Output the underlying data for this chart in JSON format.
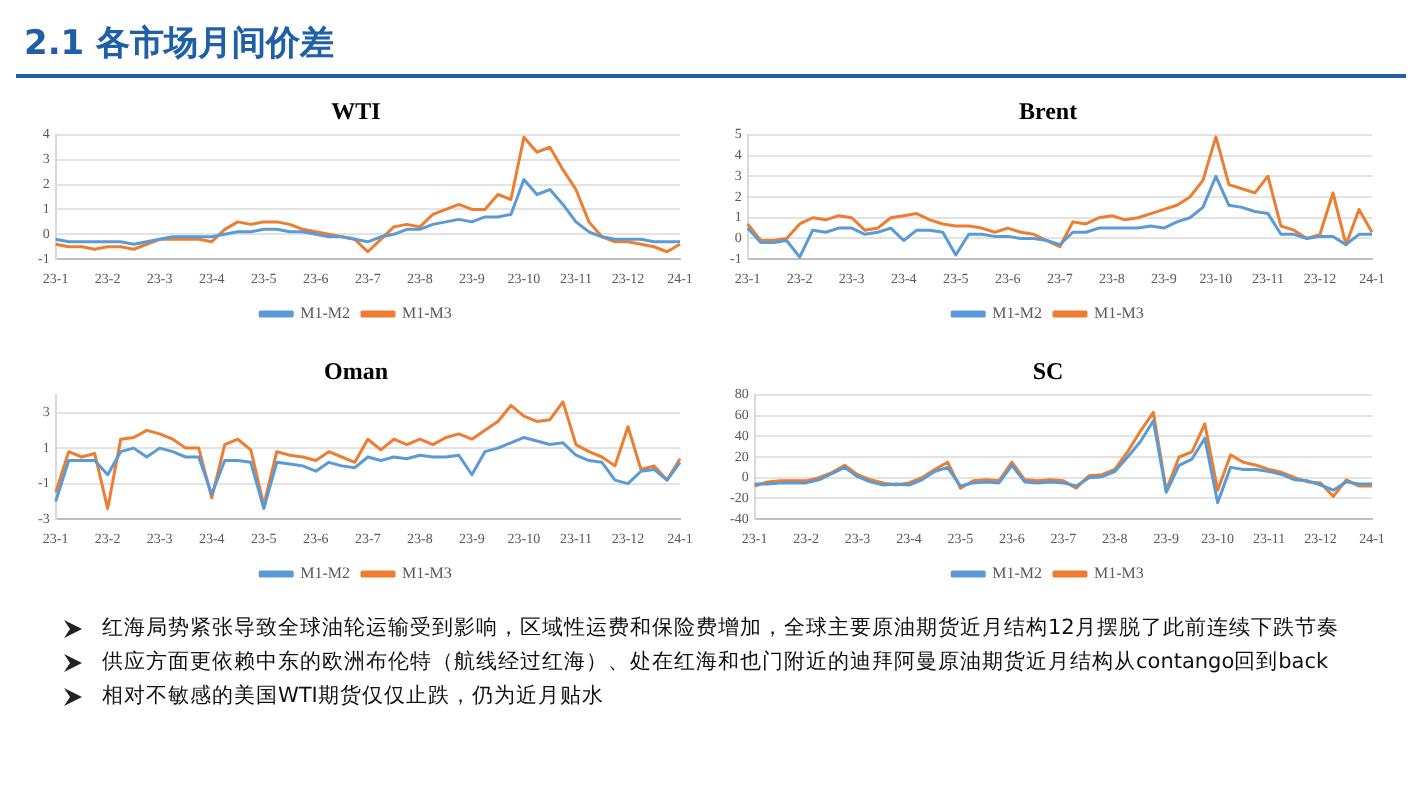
{
  "chart_data": [
    {
      "type": "other",
      "title": "2.1 各市场月间价差"
    },
    {
      "type": "line",
      "title": "WTI",
      "categories": [
        "23-1",
        null,
        null,
        null,
        "23-2",
        null,
        null,
        null,
        "23-3",
        null,
        null,
        null,
        "23-4",
        null,
        null,
        null,
        "23-5",
        null,
        null,
        null,
        "23-6",
        null,
        null,
        null,
        "23-7",
        null,
        null,
        null,
        "23-8",
        null,
        null,
        null,
        "23-9",
        null,
        null,
        null,
        "23-10",
        null,
        null,
        null,
        "23-11",
        null,
        null,
        null,
        "23-12",
        null,
        null,
        null,
        "24-1"
      ],
      "ylim": [
        -1,
        4
      ],
      "yticks": [
        -1,
        0,
        1,
        2,
        3,
        4
      ],
      "grid": "y",
      "legend": "bottom",
      "marker": "none",
      "line_style": "solid",
      "series": [
        {
          "name": "M1-M2",
          "color": "#5b9bd5",
          "values": [
            -0.2,
            -0.3,
            -0.3,
            -0.3,
            -0.3,
            -0.3,
            -0.4,
            -0.3,
            -0.2,
            -0.1,
            -0.1,
            -0.1,
            -0.1,
            0.0,
            0.1,
            0.1,
            0.2,
            0.2,
            0.1,
            0.1,
            0.0,
            -0.1,
            -0.1,
            -0.2,
            -0.3,
            -0.1,
            0.0,
            0.2,
            0.2,
            0.4,
            0.5,
            0.6,
            0.5,
            0.7,
            0.7,
            0.8,
            2.2,
            1.6,
            1.8,
            1.2,
            0.5,
            0.1,
            -0.1,
            -0.2,
            -0.2,
            -0.2,
            -0.3,
            -0.3,
            -0.3
          ]
        },
        {
          "name": "M1-M3",
          "color": "#ed7d31",
          "values": [
            -0.4,
            -0.5,
            -0.5,
            -0.6,
            -0.5,
            -0.5,
            -0.6,
            -0.4,
            -0.2,
            -0.2,
            -0.2,
            -0.2,
            -0.3,
            0.2,
            0.5,
            0.4,
            0.5,
            0.5,
            0.4,
            0.2,
            0.1,
            0.0,
            -0.1,
            -0.2,
            -0.7,
            -0.2,
            0.3,
            0.4,
            0.3,
            0.8,
            1.0,
            1.2,
            1.0,
            1.0,
            1.6,
            1.4,
            3.9,
            3.3,
            3.5,
            2.6,
            1.8,
            0.5,
            -0.1,
            -0.3,
            -0.3,
            -0.4,
            -0.5,
            -0.7,
            -0.4
          ]
        }
      ]
    },
    {
      "type": "line",
      "title": "Brent",
      "categories": [
        "23-1",
        null,
        null,
        null,
        "23-2",
        null,
        null,
        null,
        "23-3",
        null,
        null,
        null,
        "23-4",
        null,
        null,
        null,
        "23-5",
        null,
        null,
        null,
        "23-6",
        null,
        null,
        null,
        "23-7",
        null,
        null,
        null,
        "23-8",
        null,
        null,
        null,
        "23-9",
        null,
        null,
        null,
        "23-10",
        null,
        null,
        null,
        "23-11",
        null,
        null,
        null,
        "23-12",
        null,
        null,
        null,
        "24-1"
      ],
      "ylim": [
        -1,
        5
      ],
      "yticks": [
        -1,
        0,
        1,
        2,
        3,
        4,
        5
      ],
      "grid": "y",
      "legend": "bottom",
      "marker": "none",
      "line_style": "solid",
      "series": [
        {
          "name": "M1-M2",
          "color": "#5b9bd5",
          "values": [
            0.5,
            -0.2,
            -0.2,
            -0.1,
            -0.9,
            0.4,
            0.3,
            0.5,
            0.5,
            0.2,
            0.3,
            0.5,
            -0.1,
            0.4,
            0.4,
            0.3,
            -0.8,
            0.2,
            0.2,
            0.1,
            0.1,
            0.0,
            0.0,
            -0.1,
            -0.3,
            0.3,
            0.3,
            0.5,
            0.5,
            0.5,
            0.5,
            0.6,
            0.5,
            0.8,
            1.0,
            1.5,
            3.0,
            1.6,
            1.5,
            1.3,
            1.2,
            0.2,
            0.2,
            0.0,
            0.1,
            0.1,
            -0.3,
            0.2,
            0.2
          ]
        },
        {
          "name": "M1-M3",
          "color": "#ed7d31",
          "values": [
            0.7,
            -0.1,
            -0.1,
            0.0,
            0.7,
            1.0,
            0.9,
            1.1,
            1.0,
            0.4,
            0.5,
            1.0,
            1.1,
            1.2,
            0.9,
            0.7,
            0.6,
            0.6,
            0.5,
            0.3,
            0.5,
            0.3,
            0.2,
            -0.1,
            -0.4,
            0.8,
            0.7,
            1.0,
            1.1,
            0.9,
            1.0,
            1.2,
            1.4,
            1.6,
            2.0,
            2.8,
            4.9,
            2.6,
            2.4,
            2.2,
            3.0,
            0.6,
            0.4,
            0.0,
            0.2,
            2.2,
            -0.3,
            1.4,
            0.3
          ]
        }
      ]
    },
    {
      "type": "line",
      "title": "Oman",
      "categories": [
        "23-1",
        null,
        null,
        null,
        "23-2",
        null,
        null,
        null,
        "23-3",
        null,
        null,
        null,
        "23-4",
        null,
        null,
        null,
        "23-5",
        null,
        null,
        null,
        "23-6",
        null,
        null,
        null,
        "23-7",
        null,
        null,
        null,
        "23-8",
        null,
        null,
        null,
        "23-9",
        null,
        null,
        null,
        "23-10",
        null,
        null,
        null,
        "23-11",
        null,
        null,
        null,
        "23-12",
        null,
        null,
        null,
        "24-1"
      ],
      "ylim": [
        -3,
        4
      ],
      "yticks": [
        -3,
        -1,
        1,
        3
      ],
      "grid": "y",
      "legend": "bottom",
      "marker": "none",
      "line_style": "solid",
      "series": [
        {
          "name": "M1-M2",
          "color": "#5b9bd5",
          "values": [
            -2.0,
            0.3,
            0.3,
            0.3,
            -0.5,
            0.8,
            1.0,
            0.5,
            1.0,
            0.8,
            0.5,
            0.5,
            -1.6,
            0.3,
            0.3,
            0.2,
            -2.4,
            0.2,
            0.1,
            0.0,
            -0.3,
            0.2,
            0.0,
            -0.1,
            0.5,
            0.3,
            0.5,
            0.4,
            0.6,
            0.5,
            0.5,
            0.6,
            -0.5,
            0.8,
            1.0,
            1.3,
            1.6,
            1.4,
            1.2,
            1.3,
            0.6,
            0.3,
            0.2,
            -0.8,
            -1.0,
            -0.3,
            -0.2,
            -0.8,
            0.2
          ]
        },
        {
          "name": "M1-M3",
          "color": "#ed7d31",
          "values": [
            -1.5,
            0.8,
            0.5,
            0.7,
            -2.4,
            1.5,
            1.6,
            2.0,
            1.8,
            1.5,
            1.0,
            1.0,
            -1.8,
            1.2,
            1.5,
            0.9,
            -2.2,
            0.8,
            0.6,
            0.5,
            0.3,
            0.8,
            0.5,
            0.2,
            1.5,
            0.9,
            1.5,
            1.2,
            1.5,
            1.2,
            1.6,
            1.8,
            1.5,
            2.0,
            2.5,
            3.4,
            2.8,
            2.5,
            2.6,
            3.6,
            1.2,
            0.8,
            0.5,
            0.0,
            2.2,
            -0.2,
            0.0,
            -0.8,
            0.4
          ]
        }
      ]
    },
    {
      "type": "line",
      "title": "SC",
      "categories": [
        "23-1",
        null,
        null,
        null,
        "23-2",
        null,
        null,
        null,
        "23-3",
        null,
        null,
        null,
        "23-4",
        null,
        null,
        null,
        "23-5",
        null,
        null,
        null,
        "23-6",
        null,
        null,
        null,
        "23-7",
        null,
        null,
        null,
        "23-8",
        null,
        null,
        null,
        "23-9",
        null,
        null,
        null,
        "23-10",
        null,
        null,
        null,
        "23-11",
        null,
        null,
        null,
        "23-12",
        null,
        null,
        null,
        "24-1"
      ],
      "ylim": [
        -40,
        80
      ],
      "yticks": [
        -40,
        -20,
        0,
        20,
        40,
        60,
        80
      ],
      "grid": "y",
      "legend": "bottom",
      "marker": "none",
      "line_style": "solid",
      "series": [
        {
          "name": "M1-M2",
          "color": "#5b9bd5",
          "values": [
            -6,
            -6,
            -5,
            -5,
            -5,
            -2,
            4,
            10,
            1,
            -4,
            -7,
            -6,
            -7,
            -2,
            6,
            10,
            -8,
            -5,
            -4,
            -5,
            12,
            -4,
            -5,
            -4,
            -5,
            -8,
            0,
            1,
            6,
            20,
            35,
            55,
            -14,
            12,
            18,
            38,
            -24,
            10,
            8,
            8,
            6,
            3,
            -2,
            -3,
            -7,
            -12,
            -4,
            -6,
            -6
          ]
        },
        {
          "name": "M1-M3",
          "color": "#ed7d31",
          "values": [
            -8,
            -4,
            -3,
            -3,
            -3,
            0,
            5,
            12,
            3,
            -2,
            -5,
            -7,
            -5,
            0,
            8,
            15,
            -10,
            -3,
            -2,
            -3,
            15,
            -2,
            -3,
            -2,
            -3,
            -10,
            2,
            3,
            8,
            25,
            45,
            63,
            -12,
            20,
            25,
            52,
            -12,
            22,
            15,
            12,
            8,
            5,
            0,
            -4,
            -5,
            -18,
            -2,
            -8,
            -8
          ]
        }
      ]
    },
    {
      "type": "other",
      "annotations": [
        "红海局势紧张导致全球油轮运输受到影响，区域性运费和保险费增加，全球主要原油期货近月结构12月摆脱了此前连续下跌节奏",
        "供应方面更依赖中东的欧洲布伦特（航线经过红海）、处在红海和也门附近的迪拜阿曼原油期货近月结构从contango回到back",
        "相对不敏感的美国WTI期货仅仅止跌，仍为近月贴水"
      ]
    }
  ]
}
